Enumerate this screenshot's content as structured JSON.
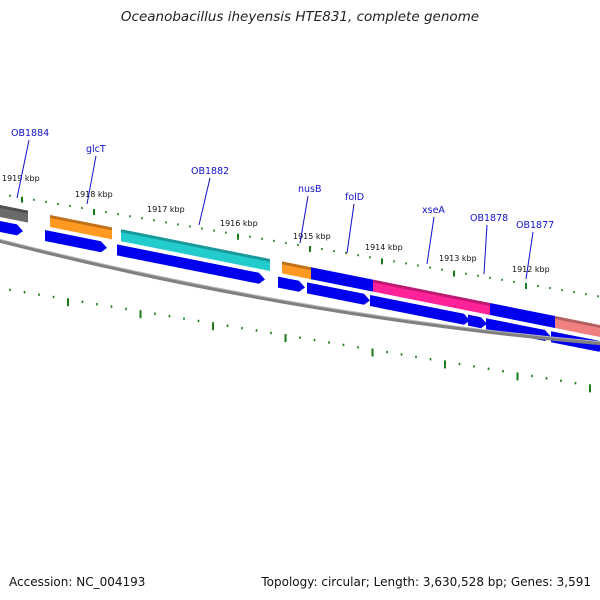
{
  "title": "Oceanobacillus iheyensis HTE831, complete genome",
  "footer": {
    "accession": "Accession: NC_004193",
    "topology": "Topology: circular; Length: 3,630,528 bp; Genes: 3,591"
  },
  "colors": {
    "cds": "#0000ee",
    "backbone": "#808080",
    "ticks": "#1a7a1a",
    "label": "#1010c8",
    "gray_feature": "#6a6a6a",
    "orange_feature": "#ff9922",
    "cyan_feature": "#22cccc",
    "pink_feature": "#ff2299",
    "salmon_feature": "#f08080"
  },
  "kbp_labels": [
    "1919 kbp",
    "1918 kbp",
    "1917 kbp",
    "1916 kbp",
    "1915 kbp",
    "1914 kbp",
    "1913 kbp",
    "1912 kbp"
  ],
  "gene_labels": [
    "OB1884",
    "glcT",
    "OB1882",
    "nusB",
    "folD",
    "xseA",
    "OB1878",
    "OB1877"
  ]
}
